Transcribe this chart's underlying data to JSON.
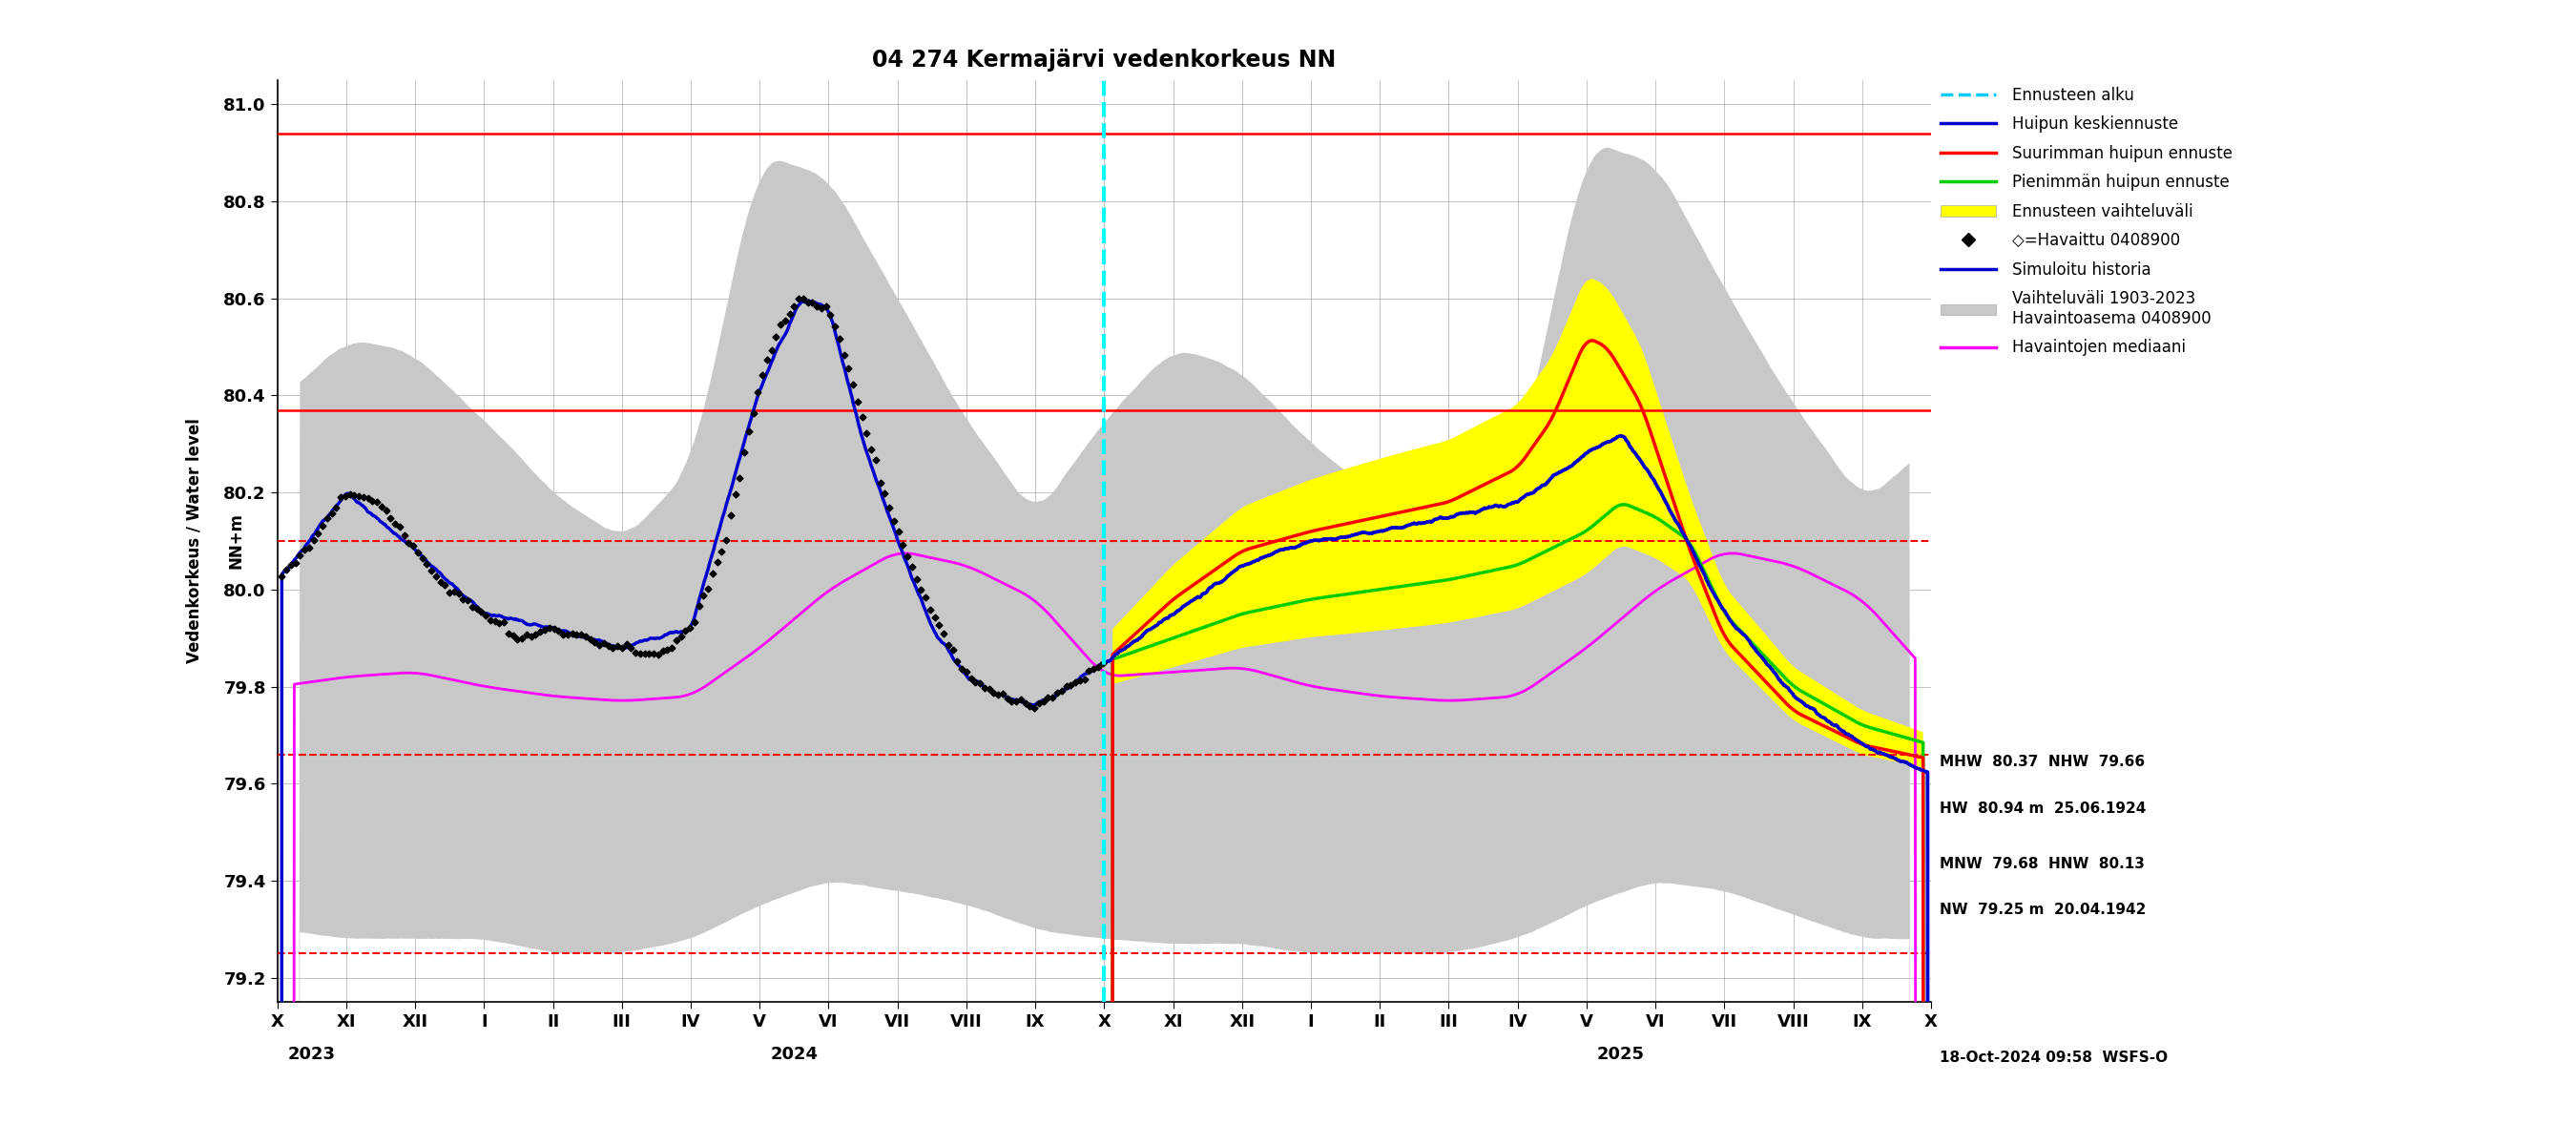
{
  "title": "04 274 Kermajärvi vedenkorkeus NN",
  "ylabel_fi": "Vedenkorkeus / Water level",
  "ylabel_en": "NN+m",
  "ylim": [
    79.15,
    81.05
  ],
  "yticks": [
    79.2,
    79.4,
    79.6,
    79.8,
    80.0,
    80.2,
    80.4,
    80.6,
    80.8,
    81.0
  ],
  "hlines_solid": [
    80.94,
    80.37
  ],
  "hlines_dashed": [
    80.1,
    79.66,
    79.25
  ],
  "forecast_start_month": 12,
  "footer_text": "18-Oct-2024 09:58  WSFS-O",
  "x_month_labels": [
    "X",
    "XI",
    "XII",
    "I",
    "II",
    "III",
    "IV",
    "V",
    "VI",
    "VII",
    "VIII",
    "IX",
    "X",
    "XI",
    "XII",
    "I",
    "II",
    "III",
    "IV",
    "V",
    "VI",
    "VII",
    "VIII",
    "IX",
    "X"
  ],
  "x_year_labels": [
    [
      "2023",
      0.5
    ],
    [
      "2024",
      7.5
    ],
    [
      "2025",
      19.5
    ]
  ],
  "x_tick_positions": [
    0,
    1,
    2,
    3,
    4,
    5,
    6,
    7,
    8,
    9,
    10,
    11,
    12,
    13,
    14,
    15,
    16,
    17,
    18,
    19,
    20,
    21,
    22,
    23,
    24
  ]
}
